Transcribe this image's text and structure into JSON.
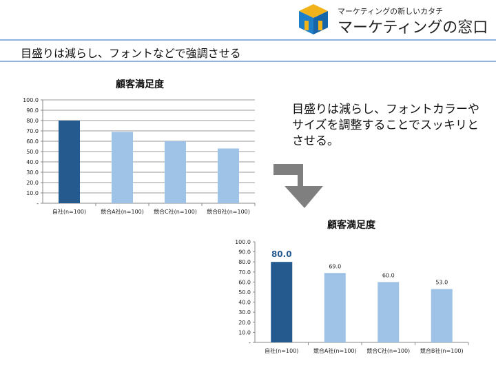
{
  "header": {
    "logo_subtitle": "マーケティングの新しいカタチ",
    "logo_title": "マーケティングの窓口",
    "slide_title": "目盛りは減らし、フォントなどで強調させる"
  },
  "note": "目盛りは減らし、フォントカラーやサイズを調整することでスッキリとさせる。",
  "colors": {
    "highlight": "#255a8e",
    "other": "#9fc3e7",
    "rule": "#8fb3dc"
  },
  "chart_data": [
    {
      "type": "bar",
      "title": "顧客満足度",
      "categories": [
        "自社(n=100)",
        "競合A社(n=100)",
        "競合C社(n=100)",
        "競合B社(n=100)"
      ],
      "values": [
        80.0,
        69.0,
        60.0,
        53.0
      ],
      "ylim": [
        0,
        100
      ],
      "yticks": [
        "-",
        "10.0",
        "20.0",
        "30.0",
        "40.0",
        "50.0",
        "60.0",
        "70.0",
        "80.0",
        "90.0",
        "100.0"
      ],
      "grid": true,
      "data_labels": false
    },
    {
      "type": "bar",
      "title": "顧客満足度",
      "categories": [
        "自社(n=100)",
        "競合A社(n=100)",
        "競合C社(n=100)",
        "競合B社(n=100)"
      ],
      "values": [
        80.0,
        69.0,
        60.0,
        53.0
      ],
      "value_labels": [
        "80.0",
        "69.0",
        "60.0",
        "53.0"
      ],
      "ylim": [
        0,
        100
      ],
      "yticks": [
        "-",
        "10.0",
        "20.0",
        "30.0",
        "40.0",
        "50.0",
        "60.0",
        "70.0",
        "80.0",
        "90.0",
        "100.0"
      ],
      "grid": false,
      "data_labels": true
    }
  ]
}
